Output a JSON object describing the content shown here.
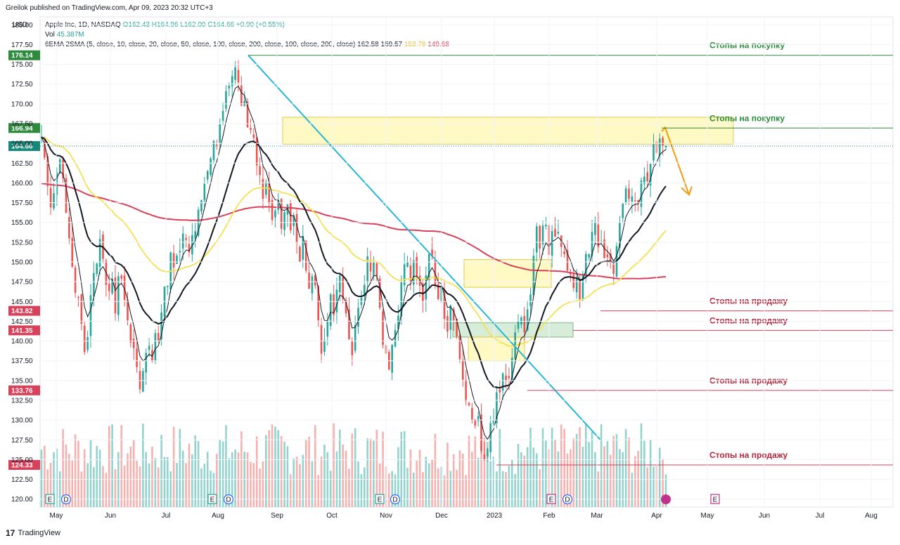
{
  "header": {
    "published": "Greilok published on TradingView.com, Apr 09, 2023 20:32 UTC+3",
    "currency": "USD"
  },
  "legend": {
    "symbol": "Apple Inc, 1D, NASDAQ",
    "ohlc": "O162.43 H164.96 L162.00 C164.66 +0.90 (+0.55%)",
    "vol_label": "Vol",
    "vol_value": "45.387M",
    "ind_label": "6EMA 2SMA (5, close, 10, close, 20, close, 50, close, 100, close, 200, close, 100, close, 200, close)",
    "ind_v1": "162.58",
    "ind_v2": "159.57",
    "ind_v3": "153.78",
    "ind_v4": "149.68"
  },
  "footer": {
    "logo_text": "TradingView"
  },
  "colors": {
    "up": "#26a69a",
    "down": "#ef5350",
    "up_vol": "#80cbc4",
    "down_vol": "#f4a3a1",
    "ema_fast": "#131722",
    "sma_yellow": "#f5e04f",
    "sma_red": "#d9405a",
    "trend": "#29b6d6",
    "stop_buy": "#2e8b3e",
    "stop_sell": "#b0283c",
    "zone_yellow": "#fff59d",
    "zone_green": "#c8e6c9",
    "arrow": "#f39c12"
  },
  "chart_data": {
    "type": "candlestick",
    "y_ticks": [
      120.0,
      122.5,
      125.0,
      127.5,
      130.0,
      132.5,
      135.0,
      137.5,
      140.0,
      142.5,
      145.0,
      147.5,
      150.0,
      152.5,
      155.0,
      157.5,
      160.0,
      162.5,
      165.0,
      167.5,
      170.0,
      172.5,
      175.0,
      177.5,
      180.0
    ],
    "ylim": [
      119,
      181
    ],
    "x_ticks": [
      "May",
      "Jun",
      "Jul",
      "Aug",
      "Sep",
      "Oct",
      "Nov",
      "Dec",
      "2023",
      "Feb",
      "Mar",
      "Apr",
      "May",
      "Jun",
      "Jul",
      "Aug"
    ],
    "price_tags": [
      {
        "value": 176.14,
        "label": "176.14",
        "color": "#2e8b3e"
      },
      {
        "value": 166.94,
        "label": "166.94",
        "color": "#2e8b3e"
      },
      {
        "value": 164.66,
        "label": "164.66",
        "color": "#138a7a"
      },
      {
        "value": 143.82,
        "label": "143.82",
        "color": "#d9405a"
      },
      {
        "value": 141.35,
        "label": "141.35",
        "color": "#d9405a"
      },
      {
        "value": 133.76,
        "label": "133.76",
        "color": "#d9405a"
      },
      {
        "value": 124.33,
        "label": "124.33",
        "color": "#d9405a"
      }
    ],
    "annotations": [
      {
        "text": "Стопы на покупку",
        "value": 176.14,
        "kind": "buy"
      },
      {
        "text": "Стопы на покупку",
        "value": 166.94,
        "kind": "buy"
      },
      {
        "text": "Стопы на продажу",
        "value": 143.82,
        "kind": "sell"
      },
      {
        "text": "Стопы на продажу",
        "value": 141.35,
        "kind": "sell"
      },
      {
        "text": "Стопы на продажу",
        "value": 133.76,
        "kind": "sell"
      },
      {
        "text": "Стопы на продажу",
        "value": 124.33,
        "kind": "sell"
      }
    ],
    "event_markers": [
      "E",
      "D",
      "E",
      "D",
      "E",
      "D",
      "E",
      "D",
      "E"
    ],
    "close_series": [
      165.8,
      163.2,
      159.6,
      156.9,
      158.7,
      161.3,
      163.0,
      160.6,
      156.2,
      153.0,
      149.4,
      146.1,
      145.5,
      142.2,
      138.6,
      140.5,
      145.8,
      148.6,
      149.8,
      152.9,
      150.4,
      147.1,
      146.3,
      147.8,
      143.5,
      148.2,
      147.9,
      145.2,
      142.6,
      139.8,
      139.1,
      136.7,
      133.9,
      136.2,
      138.5,
      139.4,
      137.5,
      141.0,
      140.1,
      143.6,
      146.9,
      147.0,
      151.2,
      149.3,
      150.8,
      151.4,
      153.6,
      152.8,
      151.2,
      153.4,
      153.9,
      156.6,
      157.8,
      159.9,
      161.5,
      163.1,
      165.3,
      164.7,
      167.4,
      169.1,
      171.6,
      172.3,
      173.5,
      174.6,
      172.7,
      169.8,
      170.4,
      167.0,
      166.7,
      165.7,
      162.2,
      161.0,
      158.0,
      160.1,
      157.4,
      155.3,
      156.5,
      157.8,
      154.2,
      156.3,
      157.3,
      154.0,
      155.9,
      152.4,
      150.0,
      153.3,
      148.9,
      146.6,
      148.2,
      147.0,
      142.6,
      138.4,
      140.1,
      142.5,
      145.9,
      143.3,
      146.5,
      148.3,
      145.3,
      143.5,
      140.2,
      138.2,
      142.0,
      144.2,
      145.5,
      147.1,
      150.7,
      148.8,
      150.0,
      148.2,
      144.2,
      139.5,
      138.4,
      136.4,
      139.5,
      141.4,
      143.2,
      147.5,
      149.7,
      150.0,
      147.5,
      150.2,
      148.2,
      147.0,
      145.0,
      148.3,
      151.0,
      150.7,
      147.0,
      145.3,
      146.8,
      142.8,
      141.2,
      144.5,
      142.6,
      140.6,
      137.7,
      135.1,
      132.4,
      131.9,
      130.0,
      129.3,
      130.5,
      126.1,
      125.0,
      126.4,
      129.6,
      130.0,
      133.5,
      133.5,
      135.9,
      135.0,
      135.3,
      137.9,
      141.1,
      142.5,
      143.0,
      141.1,
      144.0,
      145.9,
      150.8,
      154.5,
      151.7,
      154.6,
      154.7,
      150.9,
      153.9,
      153.2,
      153.8,
      151.9,
      151.0,
      148.9,
      148.4,
      146.7,
      147.9,
      145.3,
      148.5,
      151.0,
      151.0,
      153.8,
      155.0,
      151.9,
      152.6,
      150.5,
      150.6,
      150.0,
      148.5,
      152.0,
      155.0,
      157.4,
      159.3,
      158.0,
      158.3,
      157.7,
      157.4,
      160.3,
      160.8,
      160.2,
      162.4,
      164.9,
      163.8,
      165.6,
      164.7,
      164.7
    ]
  }
}
